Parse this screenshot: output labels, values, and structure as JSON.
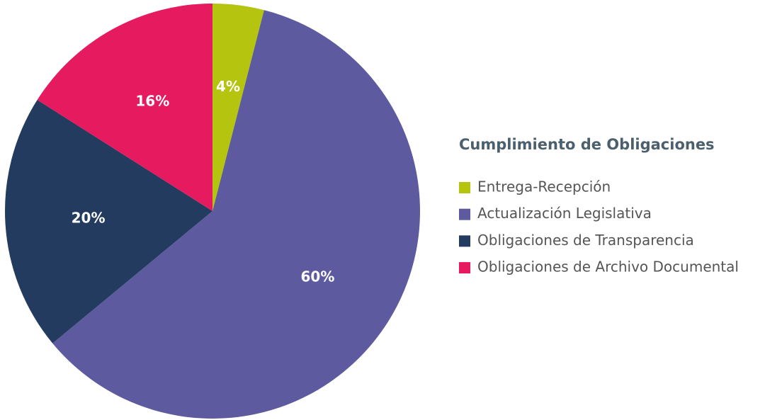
{
  "chart_data": {
    "type": "pie",
    "title": "Cumplimiento de Obligaciones",
    "categories": [
      "Entrega-Recepción",
      "Actualización Legislativa",
      "Obligaciones de Transparencia",
      "Obligaciones de Archivo Documental"
    ],
    "values": [
      4,
      60,
      20,
      16
    ],
    "value_labels": [
      "4%",
      "60%",
      "20%",
      "16%"
    ],
    "colors": [
      "#b5c40f",
      "#5d5a9f",
      "#233b5e",
      "#e51a5f"
    ],
    "legend": "right"
  }
}
